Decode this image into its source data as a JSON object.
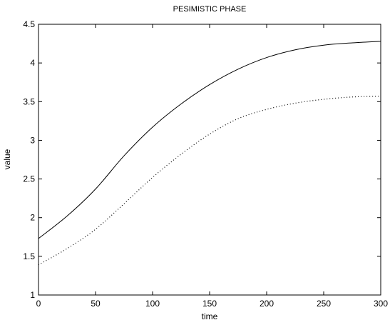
{
  "chart_data": {
    "type": "line",
    "title": "PESIMISTIC PHASE",
    "xlabel": "time",
    "ylabel": "value",
    "xlim": [
      0,
      300
    ],
    "ylim": [
      1,
      4.5
    ],
    "xticks": [
      "0",
      "50",
      "100",
      "150",
      "200",
      "250",
      "300"
    ],
    "yticks": [
      "1",
      "1.5",
      "2",
      "2.5",
      "3",
      "3.5",
      "4",
      "4.5"
    ],
    "grid": false,
    "legend": "none",
    "series": [
      {
        "style": "solid",
        "color": "#000000",
        "x": [
          0,
          25,
          50,
          75,
          100,
          125,
          150,
          175,
          200,
          225,
          250,
          275,
          300
        ],
        "y": [
          1.73,
          2.02,
          2.37,
          2.8,
          3.17,
          3.47,
          3.72,
          3.92,
          4.07,
          4.17,
          4.23,
          4.26,
          4.28
        ]
      },
      {
        "style": "dotted",
        "color": "#000000",
        "x": [
          0,
          25,
          50,
          75,
          100,
          125,
          150,
          175,
          200,
          225,
          250,
          275,
          300
        ],
        "y": [
          1.39,
          1.6,
          1.85,
          2.18,
          2.52,
          2.82,
          3.08,
          3.28,
          3.4,
          3.48,
          3.53,
          3.56,
          3.57
        ]
      }
    ]
  }
}
